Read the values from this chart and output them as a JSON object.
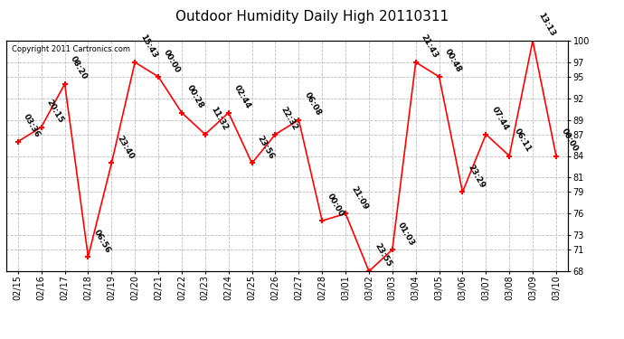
{
  "title": "Outdoor Humidity Daily High 20110311",
  "copyright": "Copyright 2011 Cartronics.com",
  "x_labels": [
    "02/15",
    "02/16",
    "02/17",
    "02/18",
    "02/19",
    "02/20",
    "02/21",
    "02/22",
    "02/23",
    "02/24",
    "02/25",
    "02/26",
    "02/27",
    "02/28",
    "03/01",
    "03/02",
    "03/03",
    "03/04",
    "03/05",
    "03/06",
    "03/07",
    "03/08",
    "03/09",
    "03/10"
  ],
  "y_values": [
    86,
    88,
    94,
    70,
    83,
    97,
    95,
    90,
    87,
    90,
    83,
    87,
    89,
    75,
    76,
    68,
    71,
    97,
    95,
    79,
    87,
    84,
    100,
    84
  ],
  "time_labels": [
    "03:36",
    "20:15",
    "08:20",
    "06:56",
    "23:40",
    "15:43",
    "00:00",
    "00:28",
    "11:32",
    "02:44",
    "23:56",
    "22:32",
    "06:08",
    "00:00",
    "21:09",
    "23:55",
    "01:03",
    "21:43",
    "00:48",
    "23:29",
    "07:44",
    "06:11",
    "13:13",
    "00:00"
  ],
  "ylim_min": 68,
  "ylim_max": 100,
  "yticks": [
    68,
    71,
    73,
    76,
    79,
    81,
    84,
    87,
    89,
    92,
    95,
    97,
    100
  ],
  "line_color": "red",
  "marker_color": "red",
  "grid_color": "#bbbbbb",
  "bg_color": "white",
  "title_fontsize": 11,
  "label_fontsize": 6.5,
  "tick_fontsize": 7,
  "copyright_fontsize": 6
}
